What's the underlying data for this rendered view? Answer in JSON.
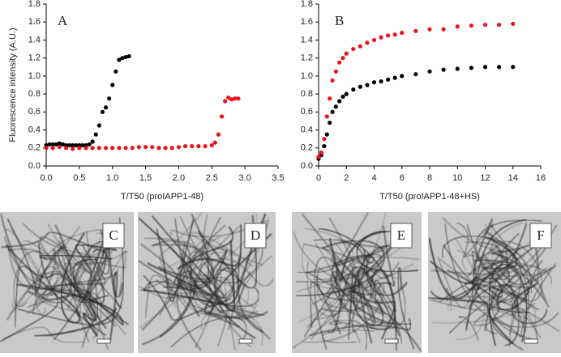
{
  "chart_data": [
    {
      "type": "scatter",
      "annotation": "A",
      "x_label": "T/T50 (proIAPP1-48)",
      "y_label": "Fluorescence intensity (A.U.)",
      "xlim": [
        0,
        3.5
      ],
      "ylim": [
        0,
        1.8
      ],
      "xticks": [
        {
          "value": 0,
          "label": "0.0"
        },
        {
          "value": 0.5,
          "label": "0.5"
        },
        {
          "value": 1,
          "label": "1.0"
        },
        {
          "value": 1.5,
          "label": "1.5"
        },
        {
          "value": 2,
          "label": "2.0"
        },
        {
          "value": 2.5,
          "label": "2.5"
        },
        {
          "value": 3,
          "label": "3.0"
        },
        {
          "value": 3.5,
          "label": "3.5"
        }
      ],
      "yticks": [
        {
          "value": 0,
          "label": "0.0"
        },
        {
          "value": 0.2,
          "label": "0.2"
        },
        {
          "value": 0.4,
          "label": "0.4"
        },
        {
          "value": 0.6,
          "label": "0.6"
        },
        {
          "value": 0.8,
          "label": "0.8"
        },
        {
          "value": 1,
          "label": "1.0"
        },
        {
          "value": 1.2,
          "label": "1.2"
        },
        {
          "value": 1.4,
          "label": "1.4"
        },
        {
          "value": 1.6,
          "label": "1.6"
        },
        {
          "value": 1.8,
          "label": "1.8"
        }
      ],
      "series": [
        {
          "color": "#000000",
          "x": [
            0,
            0.05,
            0.1,
            0.15,
            0.2,
            0.25,
            0.3,
            0.35,
            0.4,
            0.45,
            0.5,
            0.55,
            0.6,
            0.65,
            0.7,
            0.75,
            0.8,
            0.85,
            0.9,
            0.95,
            1.0,
            1.05,
            1.1,
            1.15,
            1.2,
            1.25
          ],
          "values": [
            0.23,
            0.24,
            0.24,
            0.24,
            0.25,
            0.24,
            0.23,
            0.23,
            0.23,
            0.23,
            0.23,
            0.23,
            0.23,
            0.24,
            0.27,
            0.35,
            0.45,
            0.6,
            0.65,
            0.75,
            0.9,
            1.05,
            1.18,
            1.2,
            1.21,
            1.22
          ]
        },
        {
          "color": "#e8141b",
          "x": [
            0,
            0.1,
            0.2,
            0.3,
            0.4,
            0.5,
            0.6,
            0.7,
            0.8,
            0.9,
            1.0,
            1.1,
            1.2,
            1.3,
            1.4,
            1.5,
            1.6,
            1.7,
            1.8,
            1.9,
            2.0,
            2.1,
            2.2,
            2.3,
            2.4,
            2.5,
            2.55,
            2.6,
            2.65,
            2.7,
            2.75,
            2.8,
            2.85,
            2.9
          ],
          "values": [
            0.2,
            0.2,
            0.21,
            0.2,
            0.19,
            0.2,
            0.2,
            0.2,
            0.2,
            0.2,
            0.2,
            0.2,
            0.2,
            0.2,
            0.21,
            0.21,
            0.21,
            0.2,
            0.2,
            0.2,
            0.21,
            0.22,
            0.22,
            0.22,
            0.22,
            0.23,
            0.26,
            0.35,
            0.55,
            0.72,
            0.76,
            0.74,
            0.75,
            0.75
          ]
        }
      ]
    },
    {
      "type": "scatter",
      "annotation": "B",
      "x_label": "T/T50 (proIAPP1-48+HS)",
      "xlim": [
        0,
        16
      ],
      "ylim": [
        0,
        1.8
      ],
      "xticks": [
        0,
        2,
        4,
        6,
        8,
        10,
        12,
        14,
        16
      ],
      "yticks": [
        {
          "value": 0,
          "label": "0.0"
        },
        {
          "value": 0.2,
          "label": "0.2"
        },
        {
          "value": 0.4,
          "label": "0.4"
        },
        {
          "value": 0.6,
          "label": "0.6"
        },
        {
          "value": 0.8,
          "label": "0.8"
        },
        {
          "value": 1,
          "label": "1.0"
        },
        {
          "value": 1.2,
          "label": "1.2"
        },
        {
          "value": 1.4,
          "label": "1.4"
        },
        {
          "value": 1.6,
          "label": "1.6"
        },
        {
          "value": 1.8,
          "label": "1.8"
        }
      ],
      "series": [
        {
          "color": "#000000",
          "x": [
            0,
            0.2,
            0.4,
            0.6,
            0.8,
            1,
            1.25,
            1.5,
            1.75,
            2,
            2.5,
            3,
            3.5,
            4,
            4.5,
            5,
            5.5,
            6,
            7,
            8,
            9,
            10,
            11,
            12,
            13,
            14
          ],
          "values": [
            0.08,
            0.12,
            0.22,
            0.35,
            0.48,
            0.6,
            0.66,
            0.72,
            0.77,
            0.8,
            0.85,
            0.88,
            0.9,
            0.93,
            0.94,
            0.96,
            0.98,
            1.0,
            1.02,
            1.05,
            1.07,
            1.08,
            1.09,
            1.1,
            1.1,
            1.1
          ]
        },
        {
          "color": "#e8141b",
          "x": [
            0,
            0.2,
            0.4,
            0.6,
            0.8,
            1,
            1.25,
            1.5,
            1.75,
            2,
            2.5,
            3,
            3.5,
            4,
            4.5,
            5,
            5.5,
            6,
            7,
            8,
            9,
            10,
            11,
            12,
            13,
            14
          ],
          "values": [
            0.1,
            0.15,
            0.3,
            0.55,
            0.75,
            0.95,
            1.05,
            1.15,
            1.2,
            1.25,
            1.3,
            1.33,
            1.37,
            1.4,
            1.43,
            1.45,
            1.46,
            1.48,
            1.5,
            1.52,
            1.52,
            1.55,
            1.56,
            1.57,
            1.57,
            1.58
          ]
        }
      ]
    }
  ],
  "panels": [
    {
      "label": "C"
    },
    {
      "label": "D"
    },
    {
      "label": "E"
    },
    {
      "label": "F"
    }
  ]
}
